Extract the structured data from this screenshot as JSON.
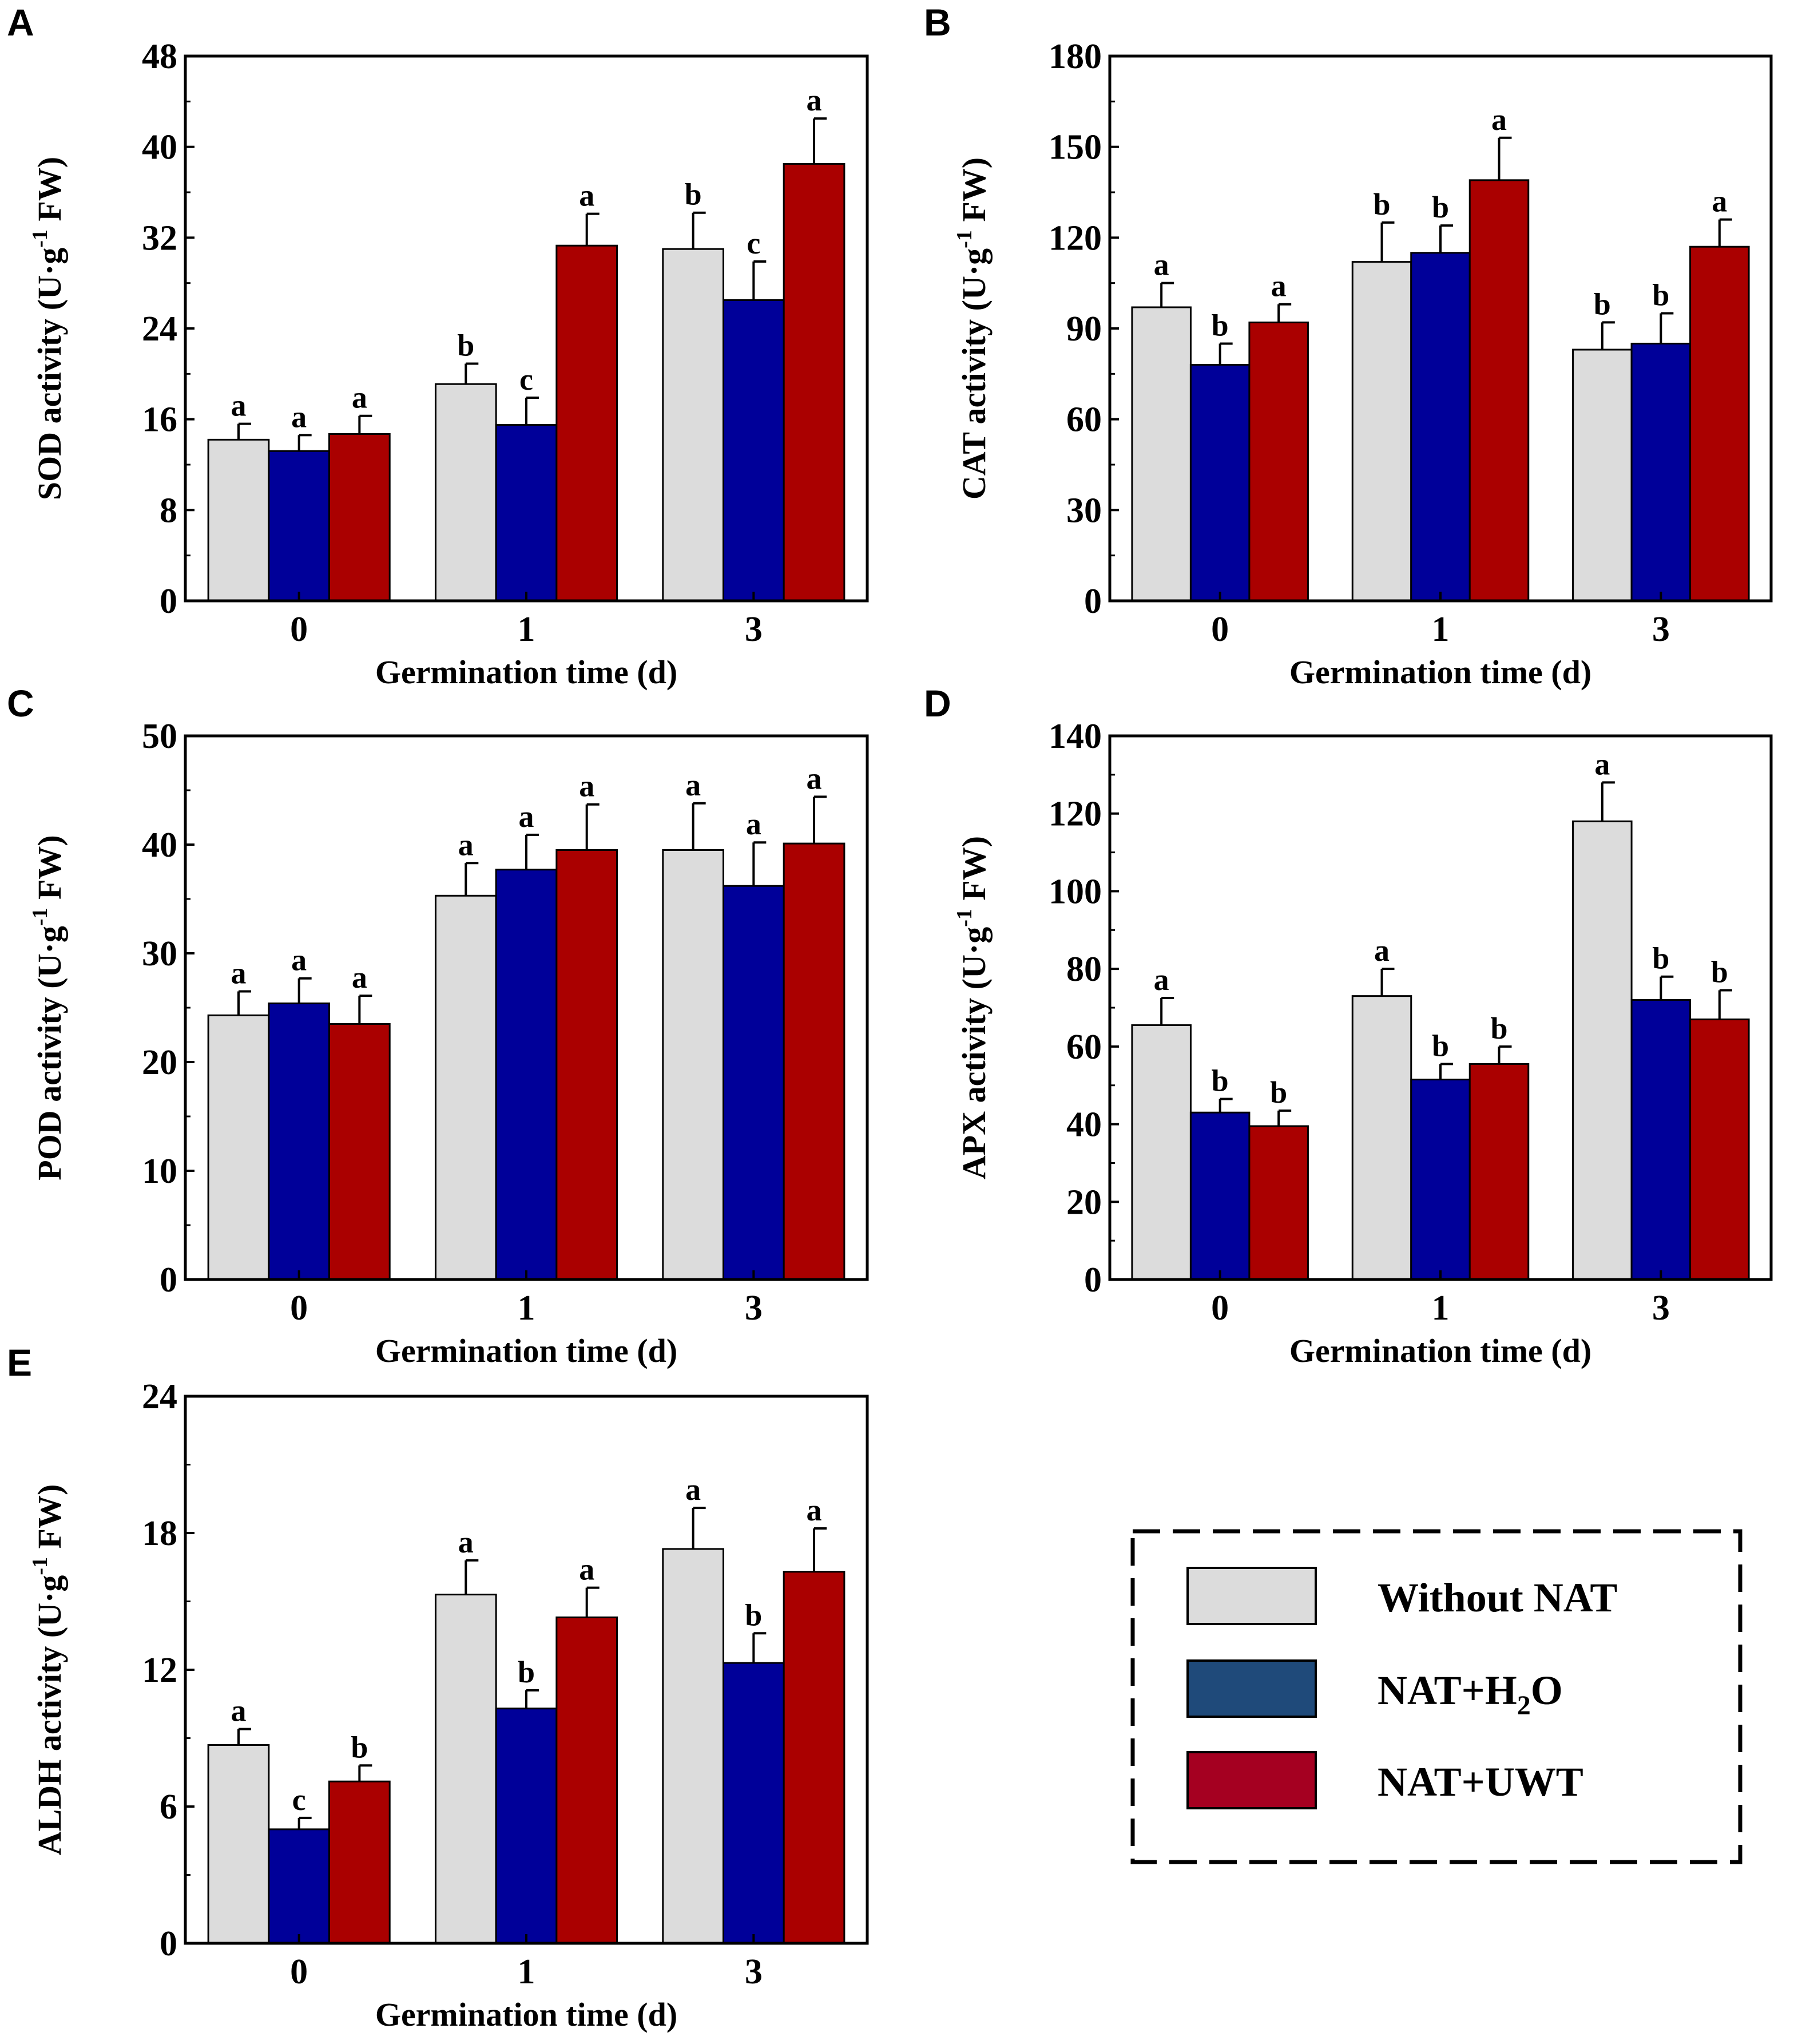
{
  "colors": {
    "without_nat": "#dcdcdc",
    "nat_h2o": "#000099",
    "nat_uwt": "#aa0000",
    "legend_nat_h2o": "#1f4a7a",
    "legend_nat_uwt": "#a50021"
  },
  "legend": {
    "items": [
      {
        "label": "Without NAT",
        "series": 0
      },
      {
        "label_main": "NAT+H",
        "label_sub": "2",
        "label_tail": "O",
        "series": 1
      },
      {
        "label": "NAT+UWT",
        "series": 2
      }
    ]
  },
  "chart_data": [
    {
      "panel": "A",
      "type": "bar",
      "title": "",
      "xlabel": "Germination time (d)",
      "ylabel": "SOD activity (U·g⁻¹ FW)",
      "ylabel_parts": [
        "SOD activity (U·g",
        "-1",
        " FW)"
      ],
      "categories": [
        "0",
        "1",
        "3"
      ],
      "ylim": [
        0,
        48
      ],
      "yticks": [
        "0",
        "8",
        "16",
        "24",
        "32",
        "40",
        "48"
      ],
      "series": [
        {
          "name": "Without NAT",
          "values": [
            14.2,
            19.1,
            31.0
          ],
          "errors": [
            1.4,
            1.8,
            3.2
          ],
          "letters": [
            "a",
            "b",
            "b"
          ]
        },
        {
          "name": "NAT+H2O",
          "values": [
            13.2,
            15.5,
            26.5
          ],
          "errors": [
            1.4,
            2.4,
            3.4
          ],
          "letters": [
            "a",
            "c",
            "c"
          ]
        },
        {
          "name": "NAT+UWT",
          "values": [
            14.7,
            31.3,
            38.5
          ],
          "errors": [
            1.6,
            2.8,
            4.0
          ],
          "letters": [
            "a",
            "a",
            "a"
          ]
        }
      ]
    },
    {
      "panel": "B",
      "type": "bar",
      "title": "",
      "xlabel": "Germination time (d)",
      "ylabel": "CAT activity (U·g⁻¹ FW)",
      "ylabel_parts": [
        "CAT activity (U·g",
        "-1",
        " FW)"
      ],
      "categories": [
        "0",
        "1",
        "3"
      ],
      "ylim": [
        0,
        180
      ],
      "yticks": [
        "0",
        "30",
        "60",
        "90",
        "120",
        "150",
        "180"
      ],
      "series": [
        {
          "name": "Without NAT",
          "values": [
            97,
            112,
            83
          ],
          "errors": [
            8,
            13,
            9
          ],
          "letters": [
            "a",
            "b",
            "b"
          ]
        },
        {
          "name": "NAT+H2O",
          "values": [
            78,
            115,
            85
          ],
          "errors": [
            7,
            9,
            10
          ],
          "letters": [
            "b",
            "b",
            "b"
          ]
        },
        {
          "name": "NAT+UWT",
          "values": [
            92,
            139,
            117
          ],
          "errors": [
            6,
            14,
            9
          ],
          "letters": [
            "a",
            "a",
            "a"
          ]
        }
      ]
    },
    {
      "panel": "C",
      "type": "bar",
      "title": "",
      "xlabel": "Germination time (d)",
      "ylabel": "POD activity (U·g⁻¹ FW)",
      "ylabel_parts": [
        "POD activity (U·g",
        "-1",
        " FW)"
      ],
      "categories": [
        "0",
        "1",
        "3"
      ],
      "ylim": [
        0,
        50
      ],
      "yticks": [
        "0",
        "10",
        "20",
        "30",
        "40",
        "50"
      ],
      "series": [
        {
          "name": "Without NAT",
          "values": [
            24.3,
            35.3,
            39.5
          ],
          "errors": [
            2.2,
            3.0,
            4.3
          ],
          "letters": [
            "a",
            "a",
            "a"
          ]
        },
        {
          "name": "NAT+H2O",
          "values": [
            25.4,
            37.7,
            36.2
          ],
          "errors": [
            2.3,
            3.2,
            4.0
          ],
          "letters": [
            "a",
            "a",
            "a"
          ]
        },
        {
          "name": "NAT+UWT",
          "values": [
            23.5,
            39.5,
            40.1
          ],
          "errors": [
            2.6,
            4.2,
            4.3
          ],
          "letters": [
            "a",
            "a",
            "a"
          ]
        }
      ]
    },
    {
      "panel": "D",
      "type": "bar",
      "title": "",
      "xlabel": "Germination time (d)",
      "ylabel": "APX activity (U·g⁻¹ FW)",
      "ylabel_parts": [
        "APX activity (U·g",
        "-1",
        " FW)"
      ],
      "categories": [
        "0",
        "1",
        "3"
      ],
      "ylim": [
        0,
        140
      ],
      "yticks": [
        "0",
        "20",
        "40",
        "60",
        "80",
        "100",
        "120",
        "140"
      ],
      "series": [
        {
          "name": "Without NAT",
          "values": [
            65.5,
            73,
            118
          ],
          "errors": [
            7,
            7,
            10
          ],
          "letters": [
            "a",
            "a",
            "a"
          ]
        },
        {
          "name": "NAT+H2O",
          "values": [
            43,
            51.5,
            72
          ],
          "errors": [
            3.5,
            4,
            6
          ],
          "letters": [
            "b",
            "b",
            "b"
          ]
        },
        {
          "name": "NAT+UWT",
          "values": [
            39.5,
            55.5,
            67
          ],
          "errors": [
            4,
            4.5,
            7.5
          ],
          "letters": [
            "b",
            "b",
            "b"
          ]
        }
      ]
    },
    {
      "panel": "E",
      "type": "bar",
      "title": "",
      "xlabel": "Germination time (d)",
      "ylabel": "ALDH activity (U·g⁻¹ FW)",
      "ylabel_parts": [
        "ALDH activity (U·g",
        "-1",
        " FW)"
      ],
      "categories": [
        "0",
        "1",
        "3"
      ],
      "ylim": [
        0,
        24
      ],
      "yticks": [
        "0",
        "6",
        "12",
        "18",
        "24"
      ],
      "series": [
        {
          "name": "Without NAT",
          "values": [
            8.7,
            15.3,
            17.3
          ],
          "errors": [
            0.7,
            1.5,
            1.8
          ],
          "letters": [
            "a",
            "a",
            "a"
          ]
        },
        {
          "name": "NAT+H2O",
          "values": [
            5.0,
            10.3,
            12.3
          ],
          "errors": [
            0.5,
            0.8,
            1.3
          ],
          "letters": [
            "c",
            "b",
            "b"
          ]
        },
        {
          "name": "NAT+UWT",
          "values": [
            7.1,
            14.3,
            16.3
          ],
          "errors": [
            0.7,
            1.3,
            1.9
          ],
          "letters": [
            "b",
            "a",
            "a"
          ]
        }
      ]
    }
  ]
}
